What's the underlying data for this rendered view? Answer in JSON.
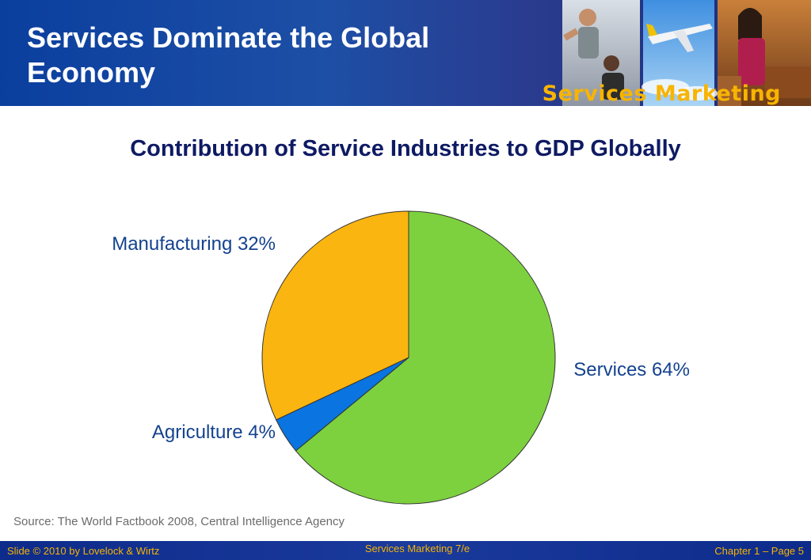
{
  "slide": {
    "title": "Services Dominate the Global Economy",
    "brand": "Services Marketing"
  },
  "chart_data": {
    "type": "pie",
    "title": "Contribution of Service Industries to GDP Globally",
    "slices": [
      {
        "label": "Services",
        "value": 64,
        "display": "Services 64%",
        "color": "#7dd13e"
      },
      {
        "label": "Agriculture",
        "value": 4,
        "display": "Agriculture 4%",
        "color": "#0a74e0"
      },
      {
        "label": "Manufacturing",
        "value": 32,
        "display": "Manufacturing 32%",
        "color": "#fbb510"
      }
    ]
  },
  "source": "Source: The World Factbook 2008, Central Intelligence Agency",
  "footer": {
    "left": "Slide © 2010 by Lovelock & Wirtz",
    "center": "Services Marketing 7/e",
    "right": "Chapter 1 – Page 5"
  }
}
